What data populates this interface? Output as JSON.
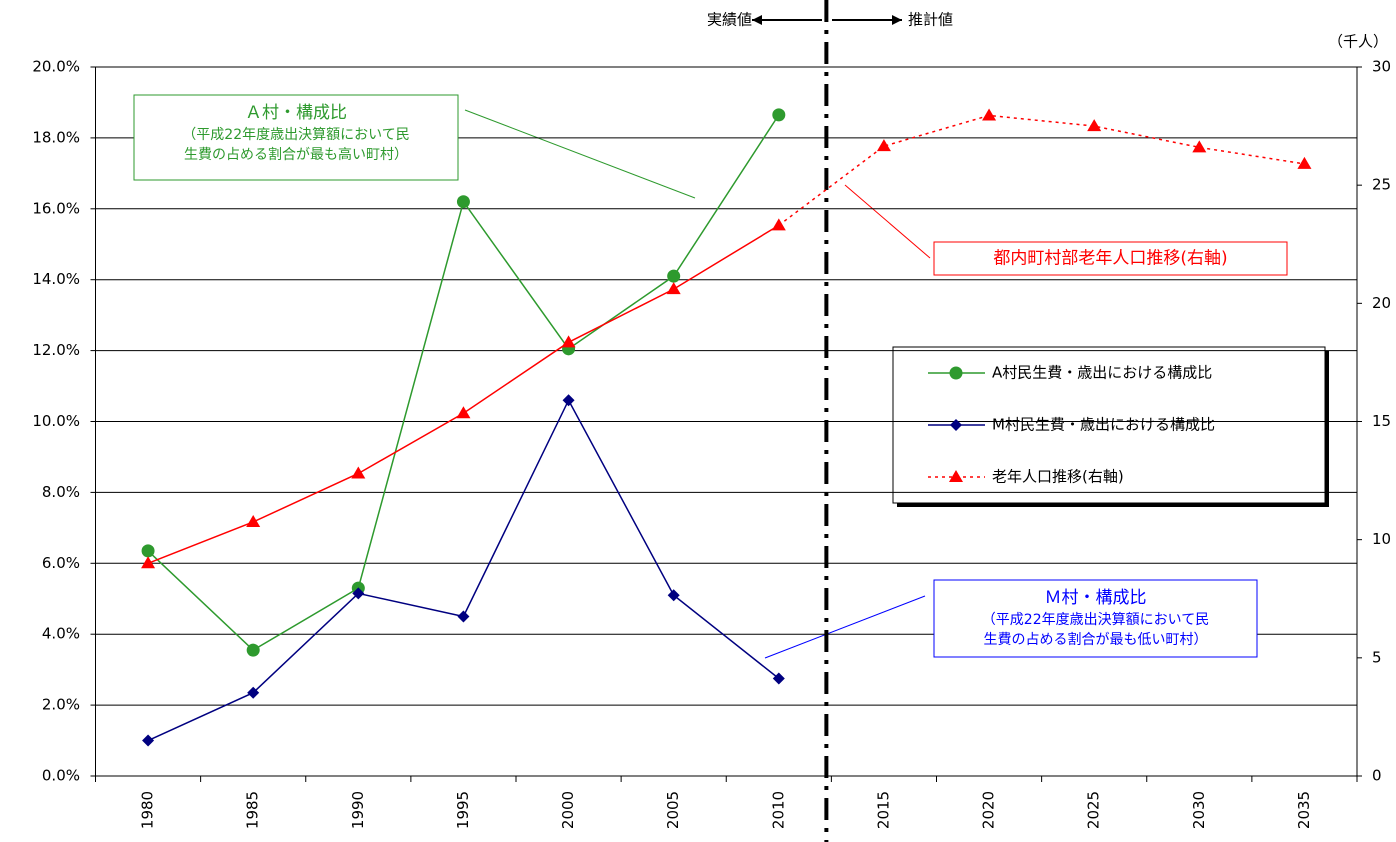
{
  "chart_data": {
    "type": "line",
    "categories": [
      "1980",
      "1985",
      "1990",
      "1995",
      "2000",
      "2005",
      "2010",
      "2015",
      "2020",
      "2025",
      "2030",
      "2035"
    ],
    "series": [
      {
        "name": "A村民生費・歳出における構成比",
        "color": "#2e9a2e",
        "marker": "circle",
        "axis": "y",
        "values": [
          6.35,
          3.55,
          5.3,
          16.2,
          12.05,
          14.1,
          18.65,
          null,
          null,
          null,
          null,
          null
        ]
      },
      {
        "name": "M村民生費・歳出における構成比",
        "color": "#000080",
        "marker": "diamond",
        "axis": "y",
        "values": [
          1.0,
          2.35,
          5.15,
          4.5,
          10.6,
          5.1,
          2.75,
          null,
          null,
          null,
          null,
          null
        ]
      },
      {
        "name": "老年人口推移(右軸)",
        "color": "#ff0000",
        "marker": "triangle",
        "axis": "y2",
        "line_style": "dotted",
        "values": [
          9.0,
          10.75,
          12.8,
          15.35,
          18.35,
          20.6,
          23.3,
          26.65,
          27.95,
          27.5,
          26.6,
          25.9
        ]
      }
    ],
    "ylim": [
      0,
      20
    ],
    "yticks": [
      {
        "value": 0,
        "label": "0.0%"
      },
      {
        "value": 2,
        "label": "2.0%"
      },
      {
        "value": 4,
        "label": "4.0%"
      },
      {
        "value": 6,
        "label": "6.0%"
      },
      {
        "value": 8,
        "label": "8.0%"
      },
      {
        "value": 10,
        "label": "10.0%"
      },
      {
        "value": 12,
        "label": "12.0%"
      },
      {
        "value": 14,
        "label": "14.0%"
      },
      {
        "value": 16,
        "label": "16.0%"
      },
      {
        "value": 18,
        "label": "18.0%"
      },
      {
        "value": 20,
        "label": "20.0%"
      }
    ],
    "y2lim": [
      0,
      30
    ],
    "y2ticks": [
      0,
      5,
      10,
      15,
      20,
      25,
      30
    ],
    "y2_unit": "（千人）",
    "grid": true,
    "legend_position": "right",
    "divider_after_category": 6,
    "divider_labels": {
      "left": "実績値",
      "right": "推計値"
    },
    "annotations": [
      {
        "title": "Ａ村・構成比",
        "lines": [
          "（平成22年度歳出決算額において民",
          "生費の占める割合が最も高い町村）"
        ],
        "color": "#2e9a2e"
      },
      {
        "title": "都内町村部老年人口推移(右軸)",
        "lines": [],
        "color": "#ff0000"
      },
      {
        "title": "Ｍ村・構成比",
        "lines": [
          "（平成22年度歳出決算額において民",
          "生費の占める割合が最も低い町村）"
        ],
        "color": "#0000ff"
      }
    ]
  }
}
